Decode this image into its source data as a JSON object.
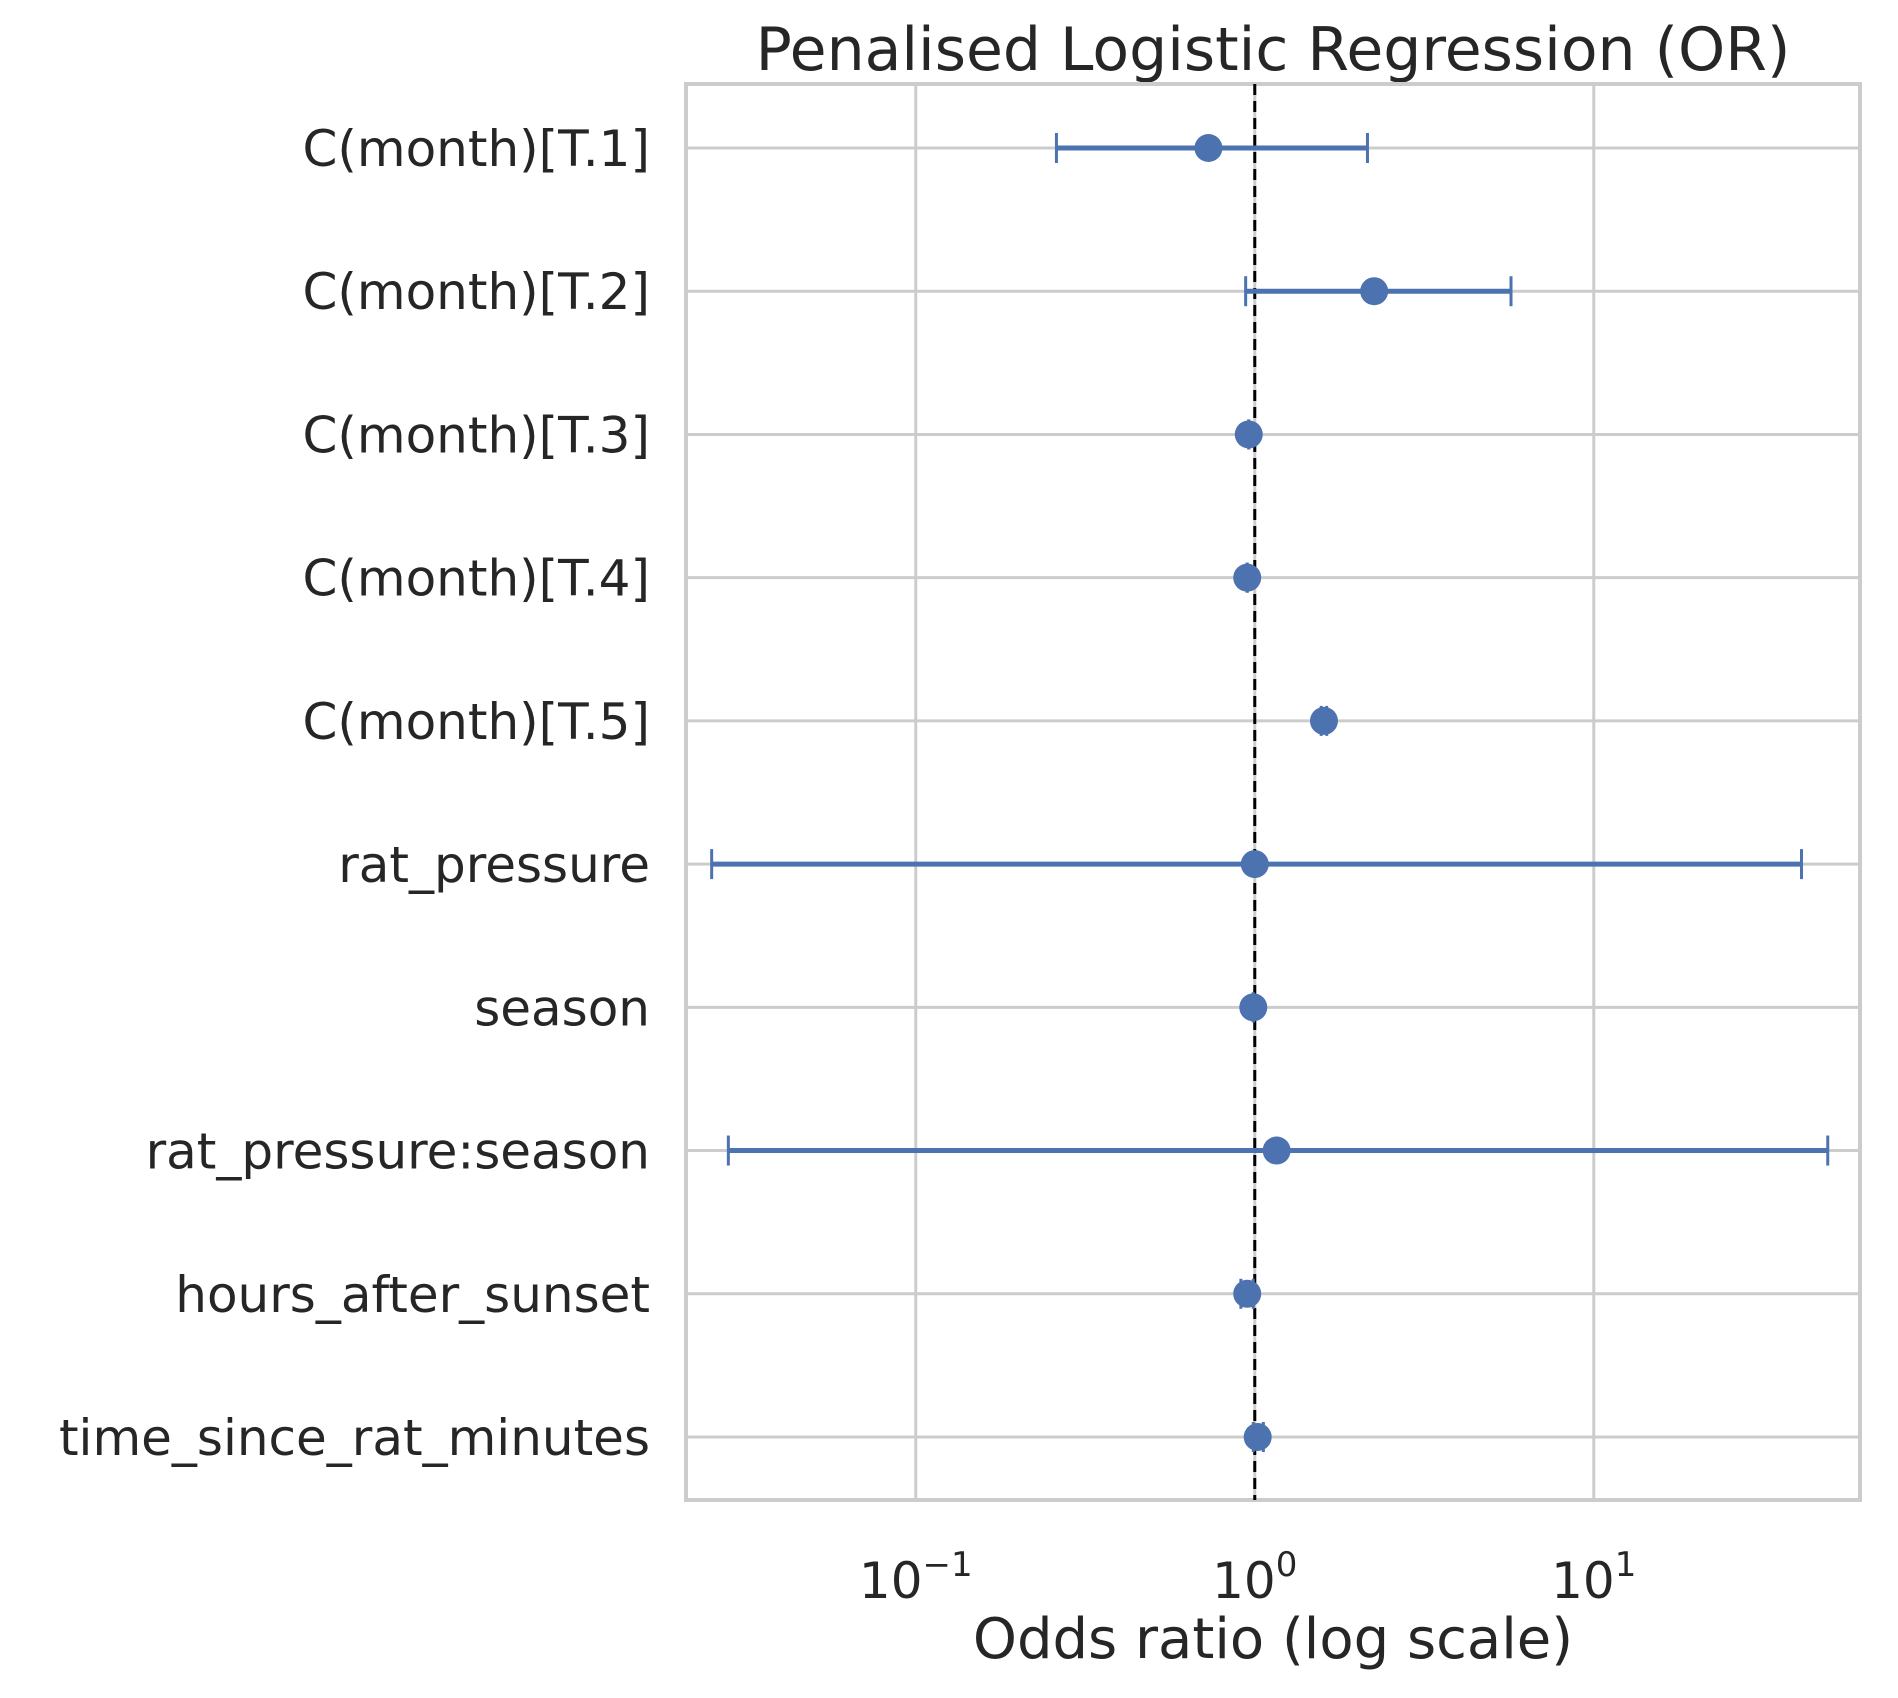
{
  "chart_data": {
    "type": "scatter",
    "subtype": "forest-plot",
    "title": "Penalised Logistic Regression (OR)",
    "xlabel": "Odds ratio (log scale)",
    "ylabel": "",
    "xscale": "log",
    "xlim": [
      0.021,
      61
    ],
    "x_ticks": [
      {
        "value": 0.1,
        "base": "10",
        "exp": "−1"
      },
      {
        "value": 1,
        "base": "10",
        "exp": "0"
      },
      {
        "value": 10,
        "base": "10",
        "exp": "1"
      }
    ],
    "reference_line": {
      "x": 1,
      "style": "dashed",
      "color": "#000000"
    },
    "grid": true,
    "marker_color": "#4c72b0",
    "categories": [
      "C(month)[T.1]",
      "C(month)[T.2]",
      "C(month)[T.3]",
      "C(month)[T.4]",
      "C(month)[T.5]",
      "rat_pressure",
      "season",
      "rat_pressure:season",
      "hours_after_sunset",
      "time_since_rat_minutes"
    ],
    "points": [
      {
        "label": "C(month)[T.1]",
        "or": 0.73,
        "ci_low": 0.26,
        "ci_high": 2.15
      },
      {
        "label": "C(month)[T.2]",
        "or": 2.25,
        "ci_low": 0.94,
        "ci_high": 5.7
      },
      {
        "label": "C(month)[T.3]",
        "or": 0.96,
        "ci_low": 0.96,
        "ci_high": 0.96
      },
      {
        "label": "C(month)[T.4]",
        "or": 0.95,
        "ci_low": 0.95,
        "ci_high": 0.95
      },
      {
        "label": "C(month)[T.5]",
        "or": 1.6,
        "ci_low": 1.57,
        "ci_high": 1.63
      },
      {
        "label": "rat_pressure",
        "or": 1.0,
        "ci_low": 0.025,
        "ci_high": 41
      },
      {
        "label": "season",
        "or": 0.99,
        "ci_low": 0.99,
        "ci_high": 0.99
      },
      {
        "label": "rat_pressure:season",
        "or": 1.16,
        "ci_low": 0.028,
        "ci_high": 49
      },
      {
        "label": "hours_after_sunset",
        "or": 0.95,
        "ci_low": 0.91,
        "ci_high": 0.99
      },
      {
        "label": "time_since_rat_minutes",
        "or": 1.02,
        "ci_low": 0.99,
        "ci_high": 1.06
      }
    ]
  }
}
